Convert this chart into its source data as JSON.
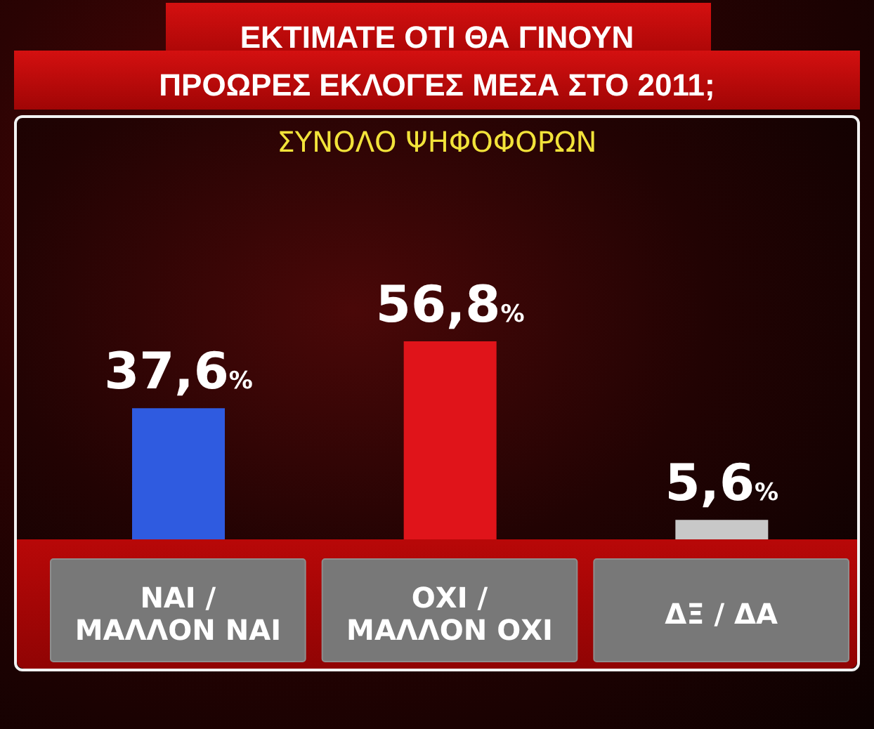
{
  "chart_data": {
    "type": "bar",
    "title": "ΕΚΤΙΜΑΤΕ ΟΤΙ ΘΑ ΓΙΝΟΥΝ\nΠΡΟΩΡΕΣ ΕΚΛΟΓΕΣ ΜΕΣΑ ΣΤΟ 2011;",
    "subtitle": "ΣΥΝΟΛΟ ΨΗΦΟΦΟΡΩΝ",
    "categories": [
      "ΝΑΙ / ΜΑΛΛΟΝ ΝΑΙ",
      "ΟΧΙ / ΜΑΛΛΟΝ ΟΧΙ",
      "ΔΞ / ΔΑ"
    ],
    "values": [
      37.6,
      56.8,
      5.6
    ],
    "colors": [
      "#2f5be0",
      "#e0141a",
      "#c8c8c8"
    ],
    "value_labels": [
      "37,6%",
      "56,8%",
      "5,6%"
    ]
  }
}
